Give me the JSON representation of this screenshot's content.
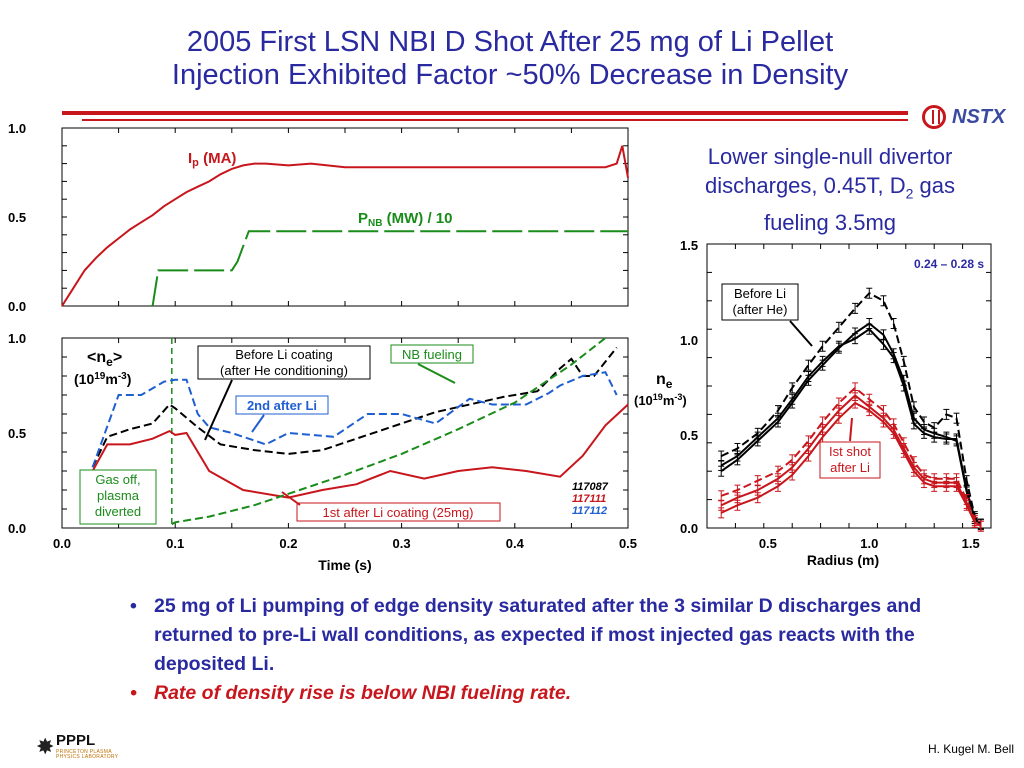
{
  "slide": {
    "title_line1": "2005 First LSN NBI D Shot After 25 mg of Li Pellet",
    "title_line2": "Injection Exhibited Factor ~50% Decrease in Density",
    "description_line1": "Lower single-null divertor",
    "description_line2a": "discharges, 0.45T, D",
    "description_sub": "2",
    "description_line2b": " gas",
    "description_line3": "fueling 3.5mg",
    "bullets": [
      "25 mg of Li pumping of edge density saturated after the 3 similar D discharges and returned to pre-Li wall conditions, as expected if most injected gas reacts with the deposited Li.",
      "Rate of density rise is below NBI fueling rate."
    ],
    "logo_nstx": "NSTX",
    "logo_pppl": "PPPL",
    "logo_pppl_sub1": "PRINCETON PLASMA",
    "logo_pppl_sub2": "PHYSICS LABORATORY",
    "author": "H. Kugel M. Bell"
  },
  "colors": {
    "title": "#2a2aa0",
    "red": "#c8161d",
    "green": "#1a8c1a",
    "blue": "#1f5fd0",
    "black": "#000000"
  },
  "chart_data": [
    {
      "type": "line",
      "xlim": [
        0.0,
        0.5
      ],
      "ylim": [
        0.0,
        1.0
      ],
      "yticks": [
        "0.0",
        "0.5",
        "1.0"
      ],
      "series": [
        {
          "name": "Ip (MA)",
          "name_main": "I",
          "name_sub": "p",
          "name_tail": " (MA)",
          "color": "#c8161d",
          "style": "solid",
          "x": [
            0.0,
            0.01,
            0.02,
            0.03,
            0.04,
            0.05,
            0.06,
            0.07,
            0.08,
            0.09,
            0.1,
            0.11,
            0.12,
            0.13,
            0.14,
            0.15,
            0.16,
            0.17,
            0.18,
            0.2,
            0.22,
            0.25,
            0.3,
            0.35,
            0.4,
            0.45,
            0.48,
            0.49,
            0.495,
            0.5
          ],
          "y": [
            0.0,
            0.1,
            0.2,
            0.27,
            0.33,
            0.38,
            0.43,
            0.47,
            0.51,
            0.56,
            0.6,
            0.64,
            0.67,
            0.7,
            0.74,
            0.77,
            0.79,
            0.8,
            0.8,
            0.79,
            0.8,
            0.78,
            0.78,
            0.78,
            0.78,
            0.78,
            0.78,
            0.8,
            0.9,
            0.72
          ]
        },
        {
          "name": "PNB (MW) / 10",
          "name_main": "P",
          "name_sub": "NB",
          "name_tail": " (MW) / 10",
          "color": "#1a8c1a",
          "style": "dashed",
          "x": [
            0.08,
            0.085,
            0.15,
            0.155,
            0.165,
            0.5
          ],
          "y": [
            0.0,
            0.2,
            0.2,
            0.25,
            0.42,
            0.42
          ]
        }
      ]
    },
    {
      "type": "line",
      "xlabel": "Time (s)",
      "xlim": [
        0.0,
        0.5
      ],
      "ylim": [
        0.0,
        1.0
      ],
      "xticks": [
        "0.0",
        "0.1",
        "0.2",
        "0.3",
        "0.4",
        "0.5"
      ],
      "yticks": [
        "0.0",
        "0.5",
        "1.0"
      ],
      "ylabel_main": "<n",
      "ylabel_sub": "e",
      "ylabel_tail": ">",
      "ylabel_units_a": "(10",
      "ylabel_units_sup": "19",
      "ylabel_units_b": "m",
      "ylabel_units_sup2": "-3",
      "ylabel_units_c": ")",
      "shots": [
        "117087",
        "117111",
        "117112"
      ],
      "annotations": {
        "before_li_1": "Before Li coating",
        "before_li_2": "(after He conditioning)",
        "nb_fueling": "NB fueling",
        "second_after_li": "2nd after Li",
        "gas_off_1": "Gas off,",
        "gas_off_2": "plasma",
        "gas_off_3": "diverted",
        "first_after_li": "1st after Li coating (25mg)"
      },
      "vline_x": 0.097,
      "series": [
        {
          "name": "Before Li coating",
          "color": "#000000",
          "style": "dashed",
          "x": [
            0.027,
            0.04,
            0.06,
            0.08,
            0.095,
            0.1,
            0.12,
            0.14,
            0.17,
            0.2,
            0.23,
            0.26,
            0.3,
            0.33,
            0.36,
            0.39,
            0.42,
            0.44,
            0.45,
            0.46,
            0.47,
            0.49
          ],
          "y": [
            0.32,
            0.48,
            0.52,
            0.55,
            0.65,
            0.63,
            0.53,
            0.44,
            0.41,
            0.39,
            0.41,
            0.47,
            0.55,
            0.61,
            0.65,
            0.69,
            0.72,
            0.84,
            0.89,
            0.8,
            0.8,
            0.95
          ]
        },
        {
          "name": "2nd after Li",
          "color": "#1f5fd0",
          "style": "dashed",
          "x": [
            0.027,
            0.05,
            0.07,
            0.09,
            0.1,
            0.11,
            0.12,
            0.13,
            0.15,
            0.18,
            0.2,
            0.24,
            0.27,
            0.3,
            0.33,
            0.36,
            0.38,
            0.41,
            0.43,
            0.44,
            0.46,
            0.48,
            0.49
          ],
          "y": [
            0.32,
            0.7,
            0.7,
            0.77,
            0.78,
            0.78,
            0.6,
            0.53,
            0.5,
            0.44,
            0.5,
            0.48,
            0.6,
            0.6,
            0.55,
            0.68,
            0.65,
            0.65,
            0.71,
            0.75,
            0.8,
            0.82,
            0.7
          ]
        },
        {
          "name": "1st after Li coating (25mg)",
          "color": "#c8161d",
          "style": "solid",
          "x": [
            0.027,
            0.04,
            0.06,
            0.08,
            0.095,
            0.1,
            0.11,
            0.13,
            0.16,
            0.2,
            0.23,
            0.26,
            0.29,
            0.32,
            0.35,
            0.38,
            0.41,
            0.44,
            0.46,
            0.48,
            0.5
          ],
          "y": [
            0.3,
            0.44,
            0.44,
            0.47,
            0.51,
            0.49,
            0.5,
            0.3,
            0.2,
            0.16,
            0.2,
            0.23,
            0.3,
            0.26,
            0.3,
            0.32,
            0.3,
            0.27,
            0.38,
            0.54,
            0.65
          ]
        },
        {
          "name": "NB fueling",
          "color": "#1a8c1a",
          "style": "dashed",
          "x": [
            0.097,
            0.1,
            0.13,
            0.17,
            0.2,
            0.25,
            0.3,
            0.35,
            0.4,
            0.45,
            0.48
          ],
          "y": [
            0.02,
            0.03,
            0.06,
            0.12,
            0.18,
            0.28,
            0.39,
            0.52,
            0.66,
            0.86,
            1.0
          ]
        }
      ]
    },
    {
      "type": "line",
      "xlabel": "Radius (m)",
      "xlim": [
        0.2,
        1.6
      ],
      "ylim": [
        0.0,
        1.5
      ],
      "xticks": [
        "0.5",
        "1.0",
        "1.5"
      ],
      "yticks": [
        "0.0",
        "0.5",
        "1.0",
        "1.5"
      ],
      "time_window": "0.24 – 0.28 s",
      "ylabel_main": "n",
      "ylabel_sub": "e",
      "ylabel_units_a": "(10",
      "ylabel_units_sup": "19",
      "ylabel_units_b": "m",
      "ylabel_units_sup2": "-3",
      "ylabel_units_c": ")",
      "annotations": {
        "before_li_1": "Before Li",
        "before_li_2": "(after He)",
        "first_shot_1": "Ist shot",
        "first_shot_2": "after Li"
      },
      "series": [
        {
          "name": "before_a",
          "color": "#000000",
          "style": "solid",
          "x": [
            0.27,
            0.35,
            0.45,
            0.55,
            0.62,
            0.7,
            0.77,
            0.85,
            0.93,
            1.0,
            1.07,
            1.12,
            1.17,
            1.22,
            1.27,
            1.32,
            1.38,
            1.43,
            1.48,
            1.52,
            1.55
          ],
          "y": [
            0.33,
            0.38,
            0.48,
            0.58,
            0.68,
            0.8,
            0.88,
            0.96,
            1.0,
            1.05,
            0.97,
            0.9,
            0.75,
            0.55,
            0.5,
            0.48,
            0.47,
            0.47,
            0.2,
            0.05,
            0.02
          ]
        },
        {
          "name": "before_b",
          "color": "#000000",
          "style": "solid",
          "x": [
            0.27,
            0.35,
            0.45,
            0.55,
            0.62,
            0.7,
            0.77,
            0.85,
            0.93,
            1.0,
            1.07,
            1.12,
            1.17,
            1.22,
            1.27,
            1.32,
            1.38,
            1.43,
            1.48,
            1.52,
            1.55
          ],
          "y": [
            0.3,
            0.36,
            0.46,
            0.56,
            0.66,
            0.78,
            0.86,
            0.95,
            1.03,
            1.08,
            1.02,
            0.92,
            0.78,
            0.58,
            0.52,
            0.5,
            0.48,
            0.46,
            0.19,
            0.05,
            0.02
          ]
        },
        {
          "name": "before_c",
          "color": "#000000",
          "style": "dashed",
          "x": [
            0.27,
            0.35,
            0.45,
            0.55,
            0.62,
            0.7,
            0.77,
            0.85,
            0.93,
            1.0,
            1.07,
            1.12,
            1.17,
            1.22,
            1.27,
            1.32,
            1.38,
            1.43,
            1.48,
            1.52,
            1.55
          ],
          "y": [
            0.38,
            0.42,
            0.5,
            0.62,
            0.74,
            0.86,
            0.96,
            1.06,
            1.16,
            1.24,
            1.2,
            1.08,
            0.88,
            0.64,
            0.56,
            0.53,
            0.6,
            0.58,
            0.25,
            0.06,
            0.02
          ]
        },
        {
          "name": "after_a",
          "color": "#c8161d",
          "style": "solid",
          "x": [
            0.27,
            0.35,
            0.45,
            0.55,
            0.62,
            0.7,
            0.77,
            0.85,
            0.93,
            1.0,
            1.07,
            1.12,
            1.17,
            1.22,
            1.27,
            1.32,
            1.38,
            1.43,
            1.48,
            1.52,
            1.55
          ],
          "y": [
            0.08,
            0.12,
            0.16,
            0.22,
            0.28,
            0.38,
            0.48,
            0.58,
            0.66,
            0.62,
            0.56,
            0.5,
            0.4,
            0.3,
            0.24,
            0.22,
            0.22,
            0.22,
            0.12,
            0.03,
            0.01
          ]
        },
        {
          "name": "after_b",
          "color": "#c8161d",
          "style": "solid",
          "x": [
            0.27,
            0.35,
            0.45,
            0.55,
            0.62,
            0.7,
            0.77,
            0.85,
            0.93,
            1.0,
            1.07,
            1.12,
            1.17,
            1.22,
            1.27,
            1.32,
            1.38,
            1.43,
            1.48,
            1.52,
            1.55
          ],
          "y": [
            0.12,
            0.16,
            0.2,
            0.26,
            0.32,
            0.42,
            0.52,
            0.62,
            0.7,
            0.64,
            0.58,
            0.52,
            0.42,
            0.32,
            0.26,
            0.24,
            0.24,
            0.24,
            0.13,
            0.03,
            0.01
          ]
        },
        {
          "name": "after_c",
          "color": "#c8161d",
          "style": "dashed",
          "x": [
            0.27,
            0.35,
            0.45,
            0.55,
            0.62,
            0.7,
            0.77,
            0.85,
            0.93,
            1.0,
            1.07,
            1.12,
            1.17,
            1.22,
            1.27,
            1.32,
            1.38,
            1.43,
            1.48,
            1.52,
            1.55
          ],
          "y": [
            0.17,
            0.2,
            0.25,
            0.3,
            0.36,
            0.46,
            0.56,
            0.66,
            0.74,
            0.68,
            0.62,
            0.55,
            0.45,
            0.35,
            0.28,
            0.26,
            0.26,
            0.26,
            0.15,
            0.04,
            0.01
          ]
        }
      ]
    }
  ]
}
